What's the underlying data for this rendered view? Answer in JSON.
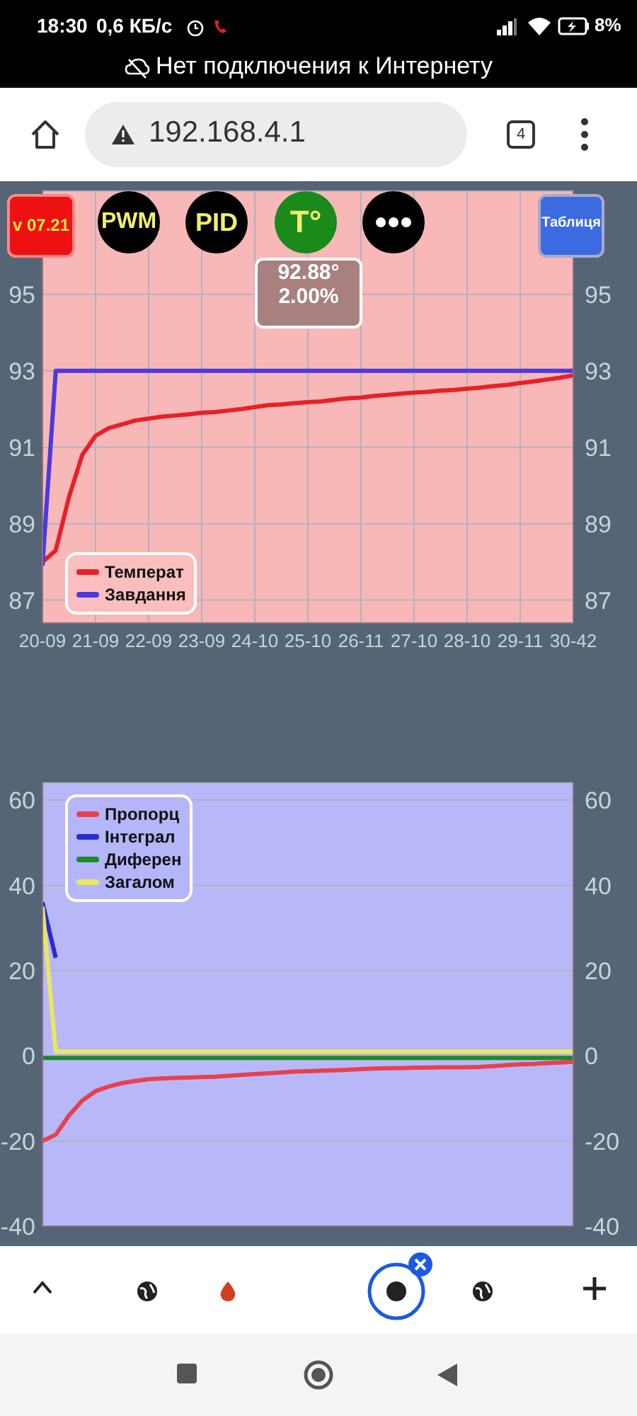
{
  "chart_data": [
    {
      "type": "line",
      "annotations": [
        "18:30",
        "0,6 КБ/с",
        "8%",
        "Нет подключения к Интернету",
        "192.168.4.1",
        "4",
        "v 07.21",
        "PWM",
        "PID",
        "T°",
        "Таблиця",
        "92.88°",
        "2.00%"
      ],
      "categories": [
        "20-09",
        null,
        null,
        null,
        "21-09",
        null,
        null,
        null,
        "22-09",
        null,
        null,
        null,
        "23-09",
        null,
        null,
        null,
        "24-10",
        null,
        null,
        null,
        "25-10",
        null,
        null,
        null,
        "26-11",
        null,
        null,
        null,
        "27-10",
        null,
        null,
        null,
        "28-10",
        null,
        null,
        null,
        "29-11",
        null,
        null,
        null,
        "30-42"
      ],
      "ylim": [
        86.4,
        97.7
      ],
      "yticks": [
        87,
        89,
        91,
        93,
        95
      ],
      "y2lim": [
        86.4,
        97.7
      ],
      "y2ticks": [
        87,
        89,
        91,
        93,
        95
      ],
      "grid": true,
      "legend": "bottom left",
      "marker": "none",
      "series": [
        {
          "name": "Температ",
          "color": "#e82028",
          "values": [
            88.0,
            88.3,
            89.7,
            90.8,
            91.3,
            91.5,
            91.6,
            91.7,
            91.75,
            91.8,
            91.83,
            91.86,
            91.9,
            91.92,
            91.96,
            92.0,
            92.05,
            92.1,
            92.12,
            92.15,
            92.18,
            92.2,
            92.24,
            92.28,
            92.3,
            92.34,
            92.37,
            92.4,
            92.43,
            92.45,
            92.48,
            92.5,
            92.53,
            92.56,
            92.6,
            92.63,
            92.68,
            92.72,
            92.77,
            92.82,
            92.88
          ]
        },
        {
          "name": "Завдання",
          "color": "#4a3ae0",
          "values": [
            87.9,
            93,
            93,
            93,
            93,
            93,
            93,
            93,
            93,
            93,
            93,
            93,
            93,
            93,
            93,
            93,
            93,
            93,
            93,
            93,
            93,
            93,
            93,
            93,
            93,
            93,
            93,
            93,
            93,
            93,
            93,
            93,
            93,
            93,
            93,
            93,
            93,
            93,
            93,
            93,
            93
          ]
        }
      ]
    },
    {
      "type": "line",
      "categories": [
        null,
        null,
        null,
        null,
        null,
        null,
        null,
        null,
        null,
        null,
        null,
        null,
        null,
        null,
        null,
        null,
        null,
        null,
        null,
        null,
        null,
        null,
        null,
        null,
        null,
        null,
        null,
        null,
        null,
        null,
        null,
        null,
        null,
        null,
        null,
        null,
        null,
        null,
        null,
        null,
        null
      ],
      "ylim": [
        -40,
        64
      ],
      "yticks": [
        -40,
        -20,
        0,
        20,
        40,
        60
      ],
      "y2lim": [
        -40,
        64
      ],
      "y2ticks": [
        -40,
        -20,
        0,
        20,
        40,
        60
      ],
      "tick_labels": "y",
      "grid": true,
      "legend": "top left",
      "marker": "none",
      "series": [
        {
          "name": "Пропорц",
          "color": "#e84050",
          "values": [
            -20,
            -18.5,
            -14,
            -10.5,
            -8.3,
            -7.2,
            -6.4,
            -5.9,
            -5.5,
            -5.3,
            -5.2,
            -5.1,
            -5,
            -4.9,
            -4.7,
            -4.5,
            -4.3,
            -4.1,
            -3.9,
            -3.7,
            -3.6,
            -3.5,
            -3.4,
            -3.3,
            -3.1,
            -3,
            -2.9,
            -2.9,
            -2.8,
            -2.8,
            -2.7,
            -2.7,
            -2.7,
            -2.6,
            -2.4,
            -2.2,
            -2,
            -1.9,
            -1.7,
            -1.6,
            -1.4
          ]
        },
        {
          "name": "Інтеграл",
          "color": "#2a2ad0",
          "values": [
            36,
            23,
            null,
            null,
            null,
            null,
            null,
            null,
            null,
            null,
            null,
            null,
            null,
            null,
            null,
            null,
            null,
            null,
            null,
            null,
            null,
            null,
            null,
            null,
            null,
            null,
            null,
            null,
            null,
            null,
            null,
            null,
            null,
            null,
            null,
            null,
            null,
            null,
            null,
            null,
            null
          ]
        },
        {
          "name": "Диферен",
          "color": "#1a8a2a",
          "values": [
            -0.5,
            -0.5,
            -0.5,
            -0.5,
            -0.5,
            -0.5,
            -0.5,
            -0.5,
            -0.5,
            -0.5,
            -0.5,
            -0.5,
            -0.5,
            -0.5,
            -0.5,
            -0.5,
            -0.5,
            -0.5,
            -0.5,
            -0.5,
            -0.5,
            -0.5,
            -0.5,
            -0.5,
            -0.5,
            -0.5,
            -0.5,
            -0.5,
            -0.5,
            -0.5,
            -0.5,
            -0.5,
            -0.5,
            -0.5,
            -0.5,
            -0.5,
            -0.5,
            -0.5,
            -0.5,
            -0.5,
            -0.5
          ]
        },
        {
          "name": "Загалом",
          "color": "#e8e860",
          "values": [
            35,
            1,
            1,
            1,
            1,
            1,
            1,
            1,
            1,
            1,
            1,
            1,
            1,
            1,
            1,
            1,
            1,
            1,
            1,
            1,
            1,
            1,
            1,
            1,
            1,
            1,
            1,
            1,
            1,
            1,
            1,
            1,
            1,
            1,
            1,
            1,
            1,
            1,
            1,
            1,
            1
          ]
        }
      ]
    }
  ]
}
